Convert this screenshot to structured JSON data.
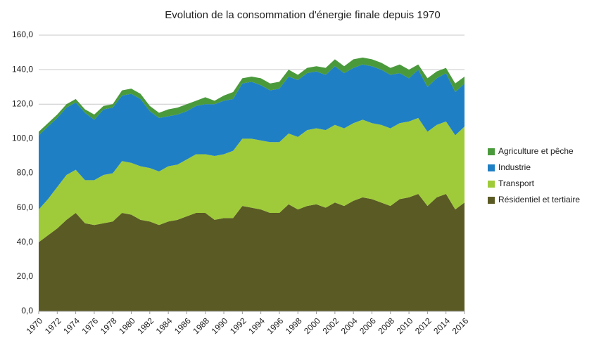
{
  "chart_data": {
    "type": "stacked_area",
    "title": "Evolution de la consommation d'énergie finale depuis 1970",
    "x": [
      1970,
      1971,
      1972,
      1973,
      1974,
      1975,
      1976,
      1977,
      1978,
      1979,
      1980,
      1981,
      1982,
      1983,
      1984,
      1985,
      1986,
      1987,
      1988,
      1989,
      1990,
      1991,
      1992,
      1993,
      1994,
      1995,
      1996,
      1997,
      1998,
      1999,
      2000,
      2001,
      2002,
      2003,
      2004,
      2005,
      2006,
      2007,
      2008,
      2009,
      2010,
      2011,
      2012,
      2013,
      2014,
      2015,
      2016
    ],
    "xlim": [
      1970,
      2016
    ],
    "xticks": [
      1970,
      1972,
      1974,
      1976,
      1978,
      1980,
      1982,
      1984,
      1986,
      1988,
      1990,
      1992,
      1994,
      1996,
      1998,
      2000,
      2002,
      2004,
      2006,
      2008,
      2010,
      2012,
      2014,
      2016
    ],
    "ylim": [
      0,
      160
    ],
    "yticks": [
      {
        "value": 0,
        "label": "0,0"
      },
      {
        "value": 20,
        "label": "20,0"
      },
      {
        "value": 40,
        "label": "40,0"
      },
      {
        "value": 60,
        "label": "60,0"
      },
      {
        "value": 80,
        "label": "80,0"
      },
      {
        "value": 100,
        "label": "100,0"
      },
      {
        "value": 120,
        "label": "120,0"
      },
      {
        "value": 140,
        "label": "140,0"
      },
      {
        "value": 160,
        "label": "160,0"
      }
    ],
    "grid": true,
    "legend": "right",
    "series": [
      {
        "name": "Résidentiel et tertiaire",
        "color": "#5a5a24",
        "values": [
          40,
          44,
          48,
          53,
          57,
          51,
          50,
          51,
          52,
          57,
          56,
          53,
          52,
          50,
          52,
          53,
          55,
          57,
          57,
          53,
          54,
          54,
          61,
          60,
          59,
          57,
          57,
          62,
          59,
          61,
          62,
          60,
          63,
          61,
          64,
          66,
          65,
          63,
          61,
          65,
          66,
          68,
          61,
          66,
          68,
          59,
          63
        ]
      },
      {
        "name": "Transport",
        "color": "#9fcb3a",
        "values": [
          19,
          21,
          24,
          26,
          25,
          25,
          26,
          28,
          28,
          30,
          30,
          31,
          31,
          31,
          32,
          32,
          33,
          34,
          34,
          37,
          37,
          39,
          39,
          40,
          40,
          41,
          41,
          41,
          42,
          44,
          44,
          45,
          45,
          45,
          45,
          45,
          44,
          45,
          45,
          44,
          44,
          44,
          43,
          42,
          42,
          43,
          44
        ]
      },
      {
        "name": "Industrie",
        "color": "#1f7fc4",
        "values": [
          43,
          42,
          40,
          39,
          39,
          39,
          35,
          38,
          38,
          38,
          40,
          39,
          33,
          31,
          29,
          29,
          28,
          28,
          29,
          30,
          31,
          30,
          32,
          33,
          32,
          30,
          31,
          33,
          33,
          33,
          33,
          32,
          34,
          32,
          32,
          32,
          33,
          32,
          31,
          29,
          25,
          28,
          26,
          27,
          28,
          25,
          25
        ]
      },
      {
        "name": "Agriculture et pêche",
        "color": "#4a9a3c",
        "values": [
          2,
          2,
          2,
          2,
          2,
          2,
          3,
          2,
          2,
          3,
          3,
          3,
          3,
          3,
          4,
          4,
          4,
          3,
          4,
          2,
          3,
          4,
          3,
          3,
          4,
          4,
          4,
          4,
          3,
          3,
          3,
          4,
          4,
          4,
          5,
          4,
          4,
          4,
          4,
          5,
          5,
          3,
          5,
          4,
          3,
          5,
          4
        ]
      }
    ]
  }
}
